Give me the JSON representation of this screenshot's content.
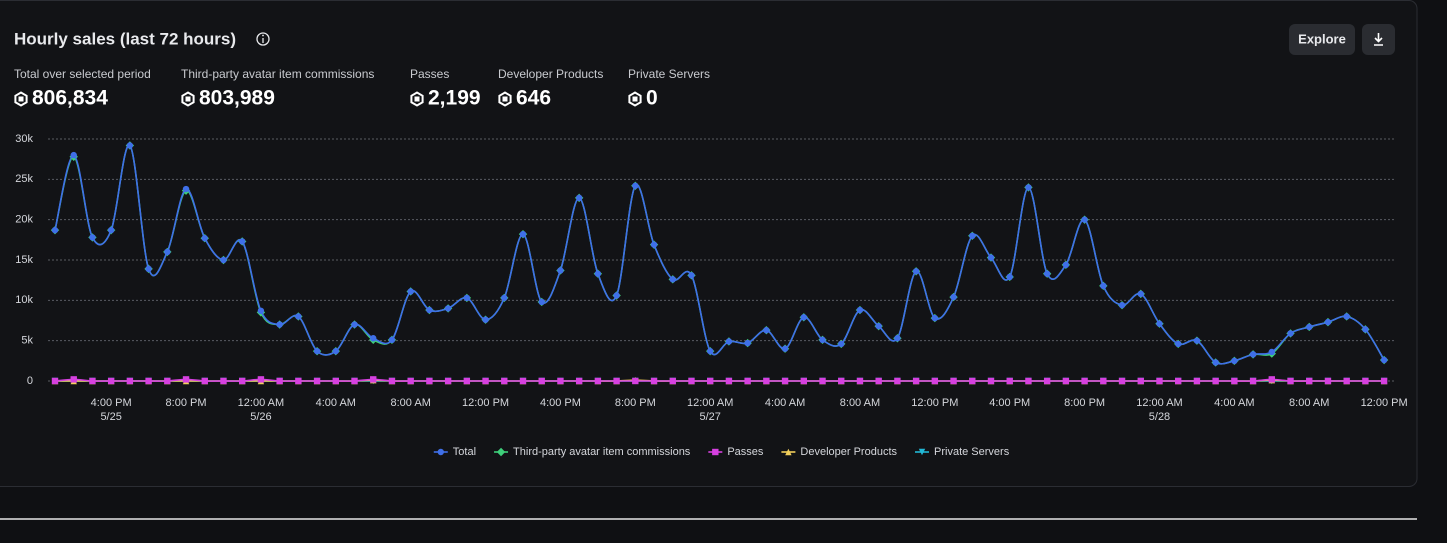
{
  "header": {
    "title": "Hourly sales (last 72 hours)",
    "buttons": [
      "Explore"
    ]
  },
  "stats": [
    {
      "label": "Total over selected period",
      "value": "806,834"
    },
    {
      "label": "Third-party avatar item commissions",
      "value": "803,989"
    },
    {
      "label": "Passes",
      "value": "2,199"
    },
    {
      "label": "Developer Products",
      "value": "646"
    },
    {
      "label": "Private Servers",
      "value": "0"
    }
  ],
  "chart_data": {
    "type": "line",
    "grid": true,
    "legend": "bottom",
    "categories": [
      null,
      null,
      null,
      "4:00 PM",
      null,
      null,
      null,
      "8:00 PM",
      null,
      null,
      null,
      "12:00 AM",
      null,
      null,
      null,
      "4:00 AM",
      null,
      null,
      null,
      "8:00 AM",
      null,
      null,
      null,
      "12:00 PM",
      null,
      null,
      null,
      "4:00 PM",
      null,
      null,
      null,
      "8:00 PM",
      null,
      null,
      null,
      "12:00 AM",
      null,
      null,
      null,
      "4:00 AM",
      null,
      null,
      null,
      "8:00 AM",
      null,
      null,
      null,
      "12:00 PM",
      null,
      null,
      null,
      "4:00 PM",
      null,
      null,
      null,
      "8:00 PM",
      null,
      null,
      null,
      "12:00 AM",
      null,
      null,
      null,
      "4:00 AM",
      null,
      null,
      null,
      "8:00 AM",
      null,
      null,
      null,
      "12:00 PM"
    ],
    "category_dates": [
      null,
      null,
      null,
      "5/25",
      null,
      null,
      null,
      null,
      null,
      null,
      null,
      "5/26",
      null,
      null,
      null,
      null,
      null,
      null,
      null,
      null,
      null,
      null,
      null,
      null,
      null,
      null,
      null,
      null,
      null,
      null,
      null,
      null,
      null,
      null,
      null,
      "5/27",
      null,
      null,
      null,
      null,
      null,
      null,
      null,
      null,
      null,
      null,
      null,
      null,
      null,
      null,
      null,
      null,
      null,
      null,
      null,
      null,
      null,
      null,
      null,
      "5/28",
      null,
      null,
      null,
      null,
      null,
      null,
      null,
      null,
      null,
      null,
      null,
      null
    ],
    "ylim": [
      0,
      30000
    ],
    "yticks": [
      0,
      {
        "value": 5000,
        "label": "5k"
      },
      {
        "value": 10000,
        "label": "10k"
      },
      {
        "value": 15000,
        "label": "15k"
      },
      {
        "value": 20000,
        "label": "20k"
      },
      {
        "value": 25000,
        "label": "25k"
      },
      {
        "value": 30000,
        "label": "30k"
      }
    ],
    "series": [
      {
        "name": "Total",
        "color": "#3f6fe8",
        "marker": "circle",
        "values": [
          18700,
          28000,
          17800,
          18700,
          29200,
          13900,
          16000,
          23800,
          17700,
          15000,
          17300,
          8700,
          7000,
          8000,
          3700,
          3700,
          7000,
          5300,
          5100,
          11100,
          8800,
          9000,
          10300,
          7600,
          10300,
          18200,
          9800,
          13700,
          22700,
          13300,
          10600,
          24200,
          16900,
          12600,
          13100,
          3700,
          4900,
          4700,
          6300,
          4000,
          7900,
          5100,
          4600,
          8800,
          6800,
          5300,
          13600,
          7800,
          10400,
          18000,
          15300,
          12900,
          24000,
          13300,
          14400,
          20000,
          11800,
          9400,
          10800,
          7100,
          4600,
          5000,
          2300,
          2500,
          3300,
          3600,
          5900,
          6700,
          7300,
          8000,
          6400,
          2600
        ]
      },
      {
        "name": "Third-party avatar item commissions",
        "color": "#3ecf7a",
        "marker": "diamond",
        "values": [
          18700,
          27800,
          17800,
          18700,
          29200,
          13900,
          16000,
          23600,
          17700,
          15000,
          17300,
          8500,
          7000,
          8000,
          3700,
          3700,
          7000,
          5100,
          5100,
          11100,
          8800,
          9000,
          10300,
          7600,
          10300,
          18200,
          9800,
          13700,
          22700,
          13300,
          10600,
          24200,
          16900,
          12600,
          13100,
          3700,
          4900,
          4700,
          6300,
          4000,
          7900,
          5100,
          4600,
          8800,
          6800,
          5300,
          13600,
          7800,
          10400,
          18000,
          15300,
          12900,
          24000,
          13300,
          14400,
          20000,
          11800,
          9400,
          10800,
          7100,
          4600,
          5000,
          2300,
          2500,
          3300,
          3400,
          5900,
          6700,
          7300,
          8000,
          6400,
          2600
        ]
      },
      {
        "name": "Passes",
        "color": "#d640e0",
        "marker": "square",
        "values": [
          0,
          200,
          0,
          0,
          0,
          0,
          0,
          200,
          0,
          0,
          0,
          200,
          0,
          0,
          0,
          0,
          0,
          200,
          0,
          0,
          0,
          0,
          0,
          0,
          0,
          0,
          0,
          0,
          0,
          0,
          0,
          0,
          0,
          0,
          0,
          0,
          0,
          0,
          0,
          0,
          0,
          0,
          0,
          0,
          0,
          0,
          0,
          0,
          0,
          0,
          0,
          0,
          0,
          0,
          0,
          0,
          0,
          0,
          0,
          0,
          0,
          0,
          0,
          0,
          0,
          200,
          0,
          0,
          0,
          0,
          0,
          0
        ]
      },
      {
        "name": "Developer Products",
        "color": "#f2cf5b",
        "marker": "triangle",
        "values": [
          0,
          0,
          0,
          0,
          0,
          0,
          0,
          0,
          0,
          0,
          0,
          0,
          0,
          0,
          0,
          0,
          0,
          100,
          0,
          0,
          0,
          0,
          0,
          0,
          0,
          0,
          0,
          0,
          0,
          0,
          0,
          100,
          0,
          0,
          0,
          0,
          0,
          0,
          0,
          0,
          0,
          0,
          0,
          0,
          0,
          0,
          0,
          0,
          0,
          0,
          0,
          0,
          0,
          0,
          0,
          0,
          0,
          0,
          0,
          0,
          0,
          0,
          0,
          0,
          0,
          100,
          0,
          0,
          0,
          0,
          0,
          0
        ]
      },
      {
        "name": "Private Servers",
        "color": "#22b8d6",
        "marker": "triangle-down",
        "values": [
          0,
          0,
          0,
          0,
          0,
          0,
          0,
          0,
          0,
          0,
          0,
          0,
          0,
          0,
          0,
          0,
          0,
          0,
          0,
          0,
          0,
          0,
          0,
          0,
          0,
          0,
          0,
          0,
          0,
          0,
          0,
          0,
          0,
          0,
          0,
          0,
          0,
          0,
          0,
          0,
          0,
          0,
          0,
          0,
          0,
          0,
          0,
          0,
          0,
          0,
          0,
          0,
          0,
          0,
          0,
          0,
          0,
          0,
          0,
          0,
          0,
          0,
          0,
          0,
          0,
          0,
          0,
          0,
          0,
          0,
          0,
          0
        ]
      }
    ]
  }
}
